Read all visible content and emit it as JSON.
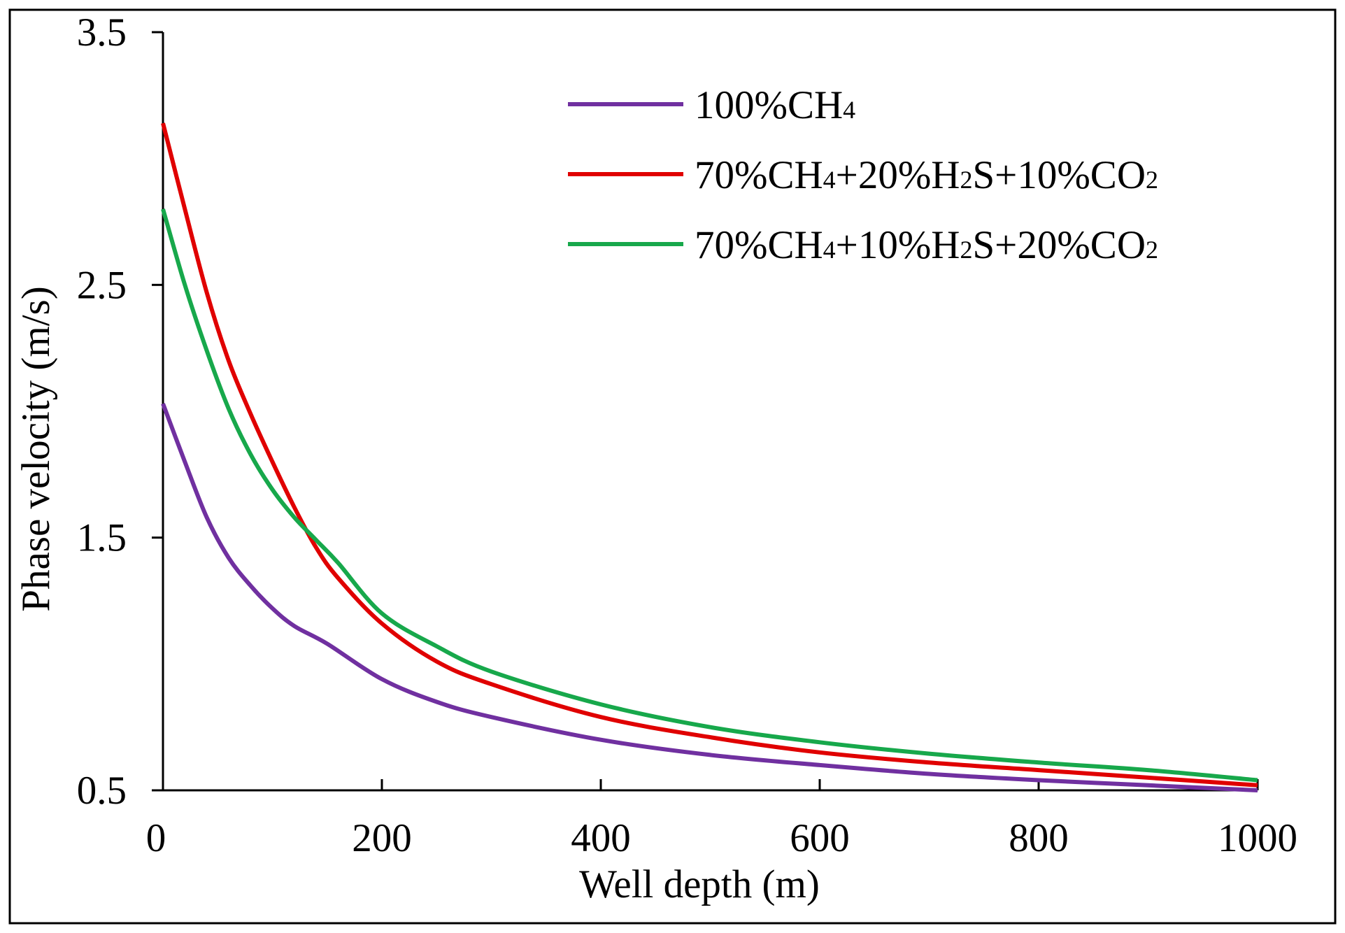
{
  "chart_data": {
    "type": "line",
    "title": "",
    "xlabel": "Well depth (m)",
    "ylabel": "Phase velocity (m/s)",
    "xlim": [
      0,
      1000
    ],
    "ylim": [
      0.5,
      3.5
    ],
    "xticks": [
      0,
      200,
      400,
      600,
      800,
      1000
    ],
    "xtick_labels": [
      "0",
      "200",
      "400",
      "600",
      "800",
      "1000"
    ],
    "yticks": [
      0.5,
      1.5,
      2.5,
      3.5
    ],
    "ytick_labels": [
      "0.5",
      "1.5",
      "2.5",
      "3.5"
    ],
    "grid": false,
    "legend_position": "top-right",
    "series": [
      {
        "name": "100%CH4",
        "legend_base": "100%CH",
        "legend_sub": "4",
        "color": "#7030A0",
        "x": [
          0,
          20,
          40,
          60,
          80,
          100,
          120,
          150,
          200,
          250,
          300,
          400,
          500,
          600,
          700,
          800,
          900,
          1000
        ],
        "y": [
          2.03,
          1.8,
          1.58,
          1.42,
          1.31,
          1.22,
          1.15,
          1.08,
          0.94,
          0.85,
          0.79,
          0.7,
          0.64,
          0.6,
          0.565,
          0.54,
          0.52,
          0.5
        ]
      },
      {
        "name": "70%CH4+20%H2S+10%CO2",
        "legend_parts": [
          {
            "t": "70%CH",
            "sub": false
          },
          {
            "t": "4",
            "sub": true
          },
          {
            "t": "+20%H",
            "sub": false
          },
          {
            "t": "2",
            "sub": true
          },
          {
            "t": "S+10%CO",
            "sub": false
          },
          {
            "t": "2",
            "sub": true
          }
        ],
        "color": "#E00000",
        "x": [
          0,
          20,
          40,
          60,
          80,
          100,
          120,
          140,
          160,
          200,
          250,
          300,
          400,
          500,
          600,
          700,
          800,
          900,
          1000
        ],
        "y": [
          3.14,
          2.8,
          2.47,
          2.2,
          1.99,
          1.8,
          1.62,
          1.46,
          1.34,
          1.16,
          1.01,
          0.92,
          0.79,
          0.71,
          0.65,
          0.61,
          0.58,
          0.55,
          0.52
        ]
      },
      {
        "name": "70%CH4+10%H2S+20%CO2",
        "legend_parts": [
          {
            "t": "70%CH",
            "sub": false
          },
          {
            "t": "4",
            "sub": true
          },
          {
            "t": "+10%H",
            "sub": false
          },
          {
            "t": "2",
            "sub": true
          },
          {
            "t": "S+20%CO",
            "sub": false
          },
          {
            "t": "2",
            "sub": true
          }
        ],
        "color": "#17A84B",
        "x": [
          0,
          20,
          40,
          60,
          80,
          100,
          120,
          140,
          160,
          200,
          250,
          300,
          400,
          500,
          600,
          700,
          800,
          900,
          1000
        ],
        "y": [
          2.8,
          2.5,
          2.24,
          2.01,
          1.83,
          1.69,
          1.58,
          1.49,
          1.4,
          1.2,
          1.07,
          0.97,
          0.84,
          0.75,
          0.69,
          0.645,
          0.61,
          0.58,
          0.54
        ]
      }
    ]
  }
}
